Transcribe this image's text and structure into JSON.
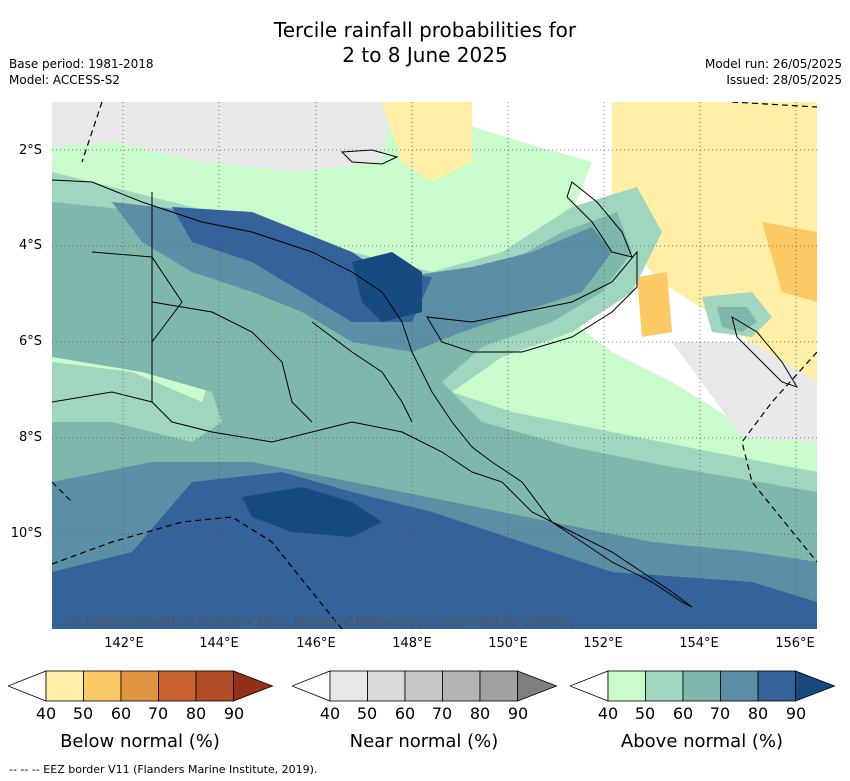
{
  "title_line1": "Tercile rainfall probabilities for",
  "title_line2": "2 to 8 June 2025",
  "base_period": "Base period: 1981-2018",
  "model": "Model: ACCESS-S2",
  "model_run": "Model run: 26/05/2025",
  "issued": "Issued: 28/05/2025",
  "lat_labels": [
    "2°S",
    "4°S",
    "6°S",
    "8°S",
    "10°S"
  ],
  "lon_labels": [
    "142°E",
    "144°E",
    "146°E",
    "148°E",
    "150°E",
    "152°E",
    "154°E",
    "156°E"
  ],
  "copyright": "© Commonwealth of Australia 2025, Bureau of Meteorology, supported by COSPPac",
  "colorbars": [
    {
      "label": "Below normal (%)",
      "colors": [
        "#ffffff",
        "#ffeea6",
        "#fdc965",
        "#e09440",
        "#c9622f",
        "#b04c26",
        "#923019"
      ],
      "ticks": [
        "40",
        "50",
        "60",
        "70",
        "80",
        "90"
      ]
    },
    {
      "label": "Near normal (%)",
      "colors": [
        "#ffffff",
        "#e8e8e8",
        "#d9d9d9",
        "#c8c8c8",
        "#b4b4b4",
        "#a0a0a0",
        "#7f7f7f"
      ],
      "ticks": [
        "40",
        "50",
        "60",
        "70",
        "80",
        "90"
      ]
    },
    {
      "label": "Above normal (%)",
      "colors": [
        "#ffffff",
        "#c9fbcc",
        "#a0d6bd",
        "#7eb7ac",
        "#5a8fa5",
        "#33639a",
        "#164a80"
      ],
      "ticks": [
        "40",
        "50",
        "60",
        "70",
        "80",
        "90"
      ]
    }
  ],
  "footer": "--  --  -- EEZ border V11 (Flanders Marine Institute, 2019)."
}
